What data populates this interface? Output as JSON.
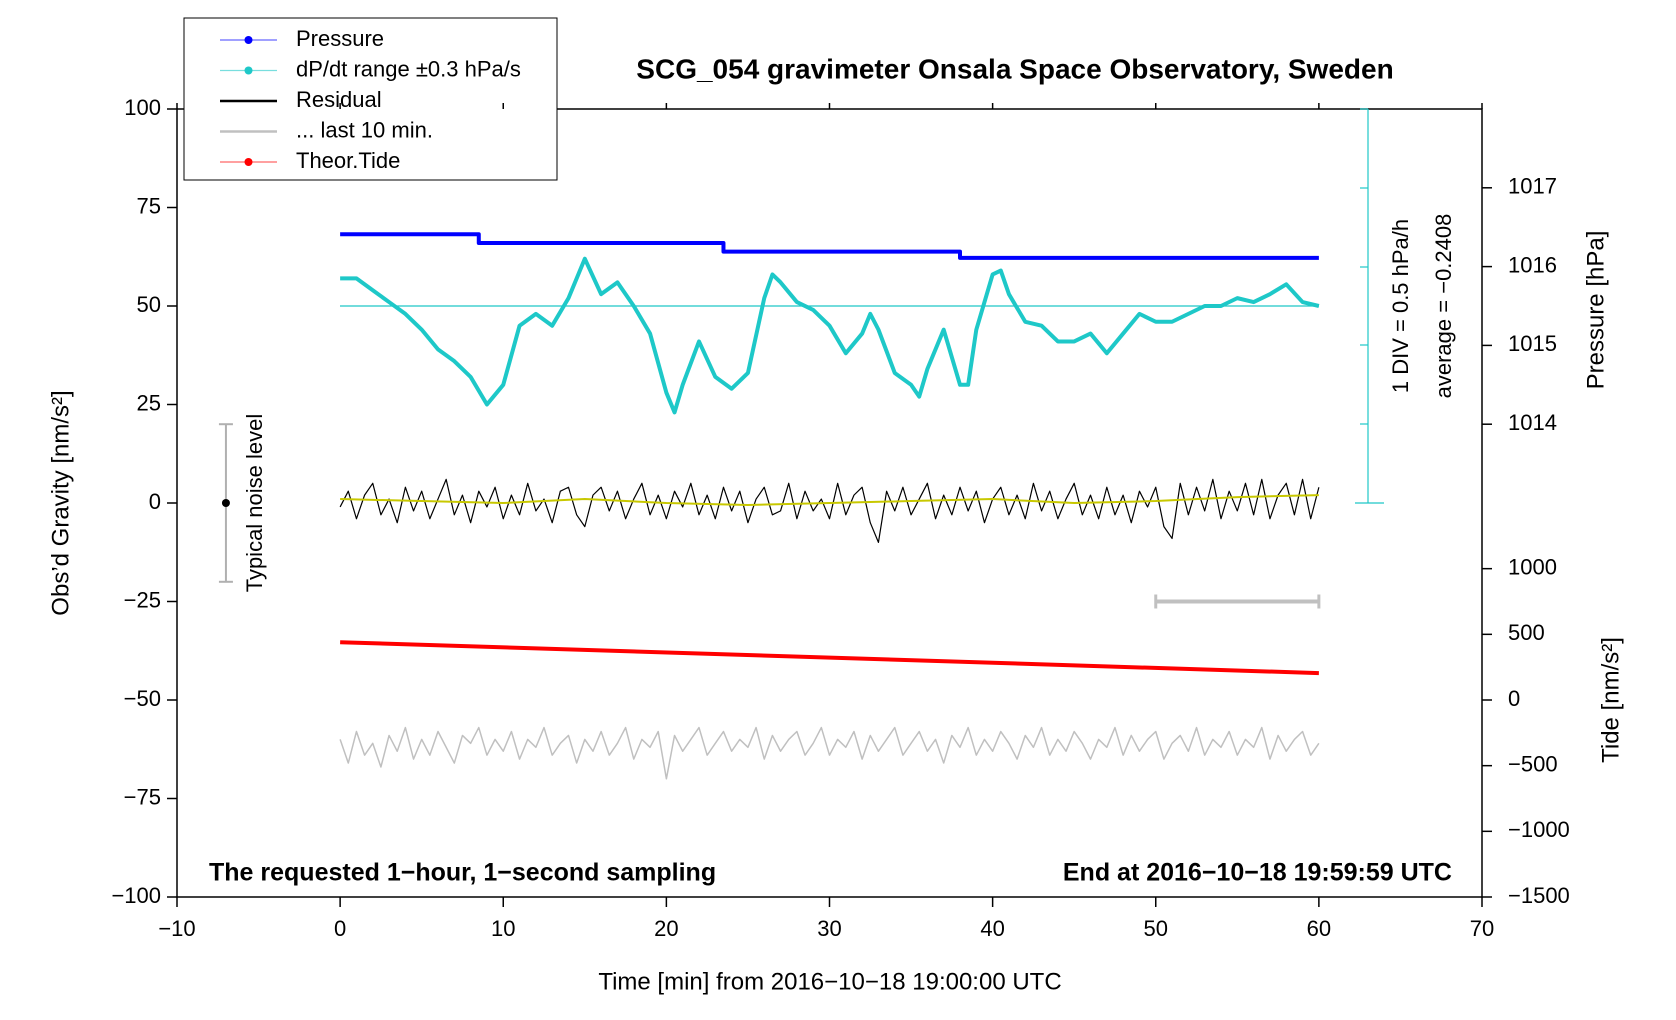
{
  "chart_data": {
    "type": "line",
    "title": "SCG_054 gravimeter Onsala Space Observatory, Sweden",
    "xlabel": "Time [min] from 2016−10−18 19:00:00 UTC",
    "ylabel": "Obs’d Gravity [nm/s²]",
    "y2label": "Pressure [hPa]",
    "y3label": "Tide [nm/s²]",
    "xlim": [
      -10,
      70
    ],
    "xticks": [
      {
        "value": -10,
        "label": "−10"
      },
      0,
      10,
      20,
      30,
      40,
      50,
      60,
      70
    ],
    "ylim": [
      -100,
      100
    ],
    "yticks": [
      100,
      75,
      50,
      25,
      0,
      {
        "value": -25,
        "label": "−25"
      },
      {
        "value": -50,
        "label": "−50"
      },
      {
        "value": -75,
        "label": "−75"
      },
      {
        "value": -100,
        "label": "−100"
      }
    ],
    "y2lim": [
      1008,
      1018
    ],
    "y2ticks": [
      1014,
      1015,
      1016,
      1017
    ],
    "y3lim": [
      -1500,
      4500
    ],
    "y3ticks": [
      1000,
      500,
      0,
      {
        "value": -500,
        "label": "−500"
      },
      {
        "value": -1000,
        "label": "−1000"
      },
      {
        "value": -1500,
        "label": "−1500"
      }
    ],
    "annotations": [
      "The requested 1−hour, 1−second sampling",
      "End at 2016−10−18 19:59:59 UTC",
      "1 DIV = 0.5 hPa/h",
      "average = −0.2408"
    ],
    "noise_level": {
      "x": -7,
      "y": 0,
      "error": 20,
      "label": "Typical noise level"
    },
    "x": [
      0,
      0.5,
      1,
      1.5,
      2,
      2.5,
      3,
      3.5,
      4,
      4.5,
      5,
      5.5,
      6,
      6.5,
      7,
      7.5,
      8,
      8.5,
      9,
      9.5,
      10,
      10.5,
      11,
      11.5,
      12,
      12.5,
      13,
      13.5,
      14,
      14.5,
      15,
      15.5,
      16,
      16.5,
      17,
      17.5,
      18,
      18.5,
      19,
      19.5,
      20,
      20.5,
      21,
      21.5,
      22,
      22.5,
      23,
      23.5,
      24,
      24.5,
      25,
      25.5,
      26,
      26.5,
      27,
      27.5,
      28,
      28.5,
      29,
      29.5,
      30,
      30.5,
      31,
      31.5,
      32,
      32.5,
      33,
      33.5,
      34,
      34.5,
      35,
      35.5,
      36,
      36.5,
      37,
      37.5,
      38,
      38.5,
      39,
      39.5,
      40,
      40.5,
      41,
      41.5,
      42,
      42.5,
      43,
      43.5,
      44,
      44.5,
      45,
      45.5,
      46,
      46.5,
      47,
      47.5,
      48,
      48.5,
      49,
      49.5,
      50,
      50.5,
      51,
      51.5,
      52,
      52.5,
      53,
      53.5,
      54,
      54.5,
      55,
      55.5,
      56,
      56.5,
      57,
      57.5,
      58,
      58.5,
      59,
      59.5,
      60
    ],
    "series": [
      {
        "name": "Pressure",
        "color": "#0000ff",
        "axis": "y2",
        "marker": true,
        "width": 4,
        "x": [
          0,
          8.5,
          8.5,
          23.5,
          23.5,
          38,
          38,
          60
        ],
        "values": [
          1016.41,
          1016.41,
          1016.3,
          1016.3,
          1016.19,
          1016.19,
          1016.11,
          1016.11
        ]
      },
      {
        "name": "dP/dt range ±0.3 hPa/s",
        "color": "#1ec8c8",
        "axis": "y",
        "marker": true,
        "width": 4,
        "x": [
          0,
          1,
          2,
          3,
          4,
          5,
          6,
          7,
          8,
          9,
          10,
          11,
          12,
          13,
          14,
          15,
          16,
          17,
          18,
          19,
          20,
          20.5,
          21,
          22,
          23,
          24,
          25,
          26,
          26.5,
          27,
          28,
          29,
          30,
          31,
          32,
          32.5,
          33,
          34,
          35,
          35.5,
          36,
          37,
          38,
          38.5,
          39,
          40,
          40.5,
          41,
          42,
          43,
          44,
          45,
          46,
          47,
          48,
          49,
          50,
          51,
          52,
          53,
          54,
          55,
          56,
          57,
          58,
          59,
          60
        ],
        "values": [
          57,
          57,
          54,
          51,
          48,
          44,
          39,
          36,
          32,
          25,
          30,
          45,
          48,
          45,
          52,
          62,
          53,
          56,
          50,
          43,
          28,
          23,
          30,
          41,
          32,
          29,
          33,
          52,
          58,
          56,
          51,
          49,
          45,
          38,
          43,
          48,
          44,
          33,
          30,
          27,
          34,
          44,
          30,
          30,
          44,
          58,
          59,
          53,
          46,
          45,
          41,
          41,
          43,
          38,
          43,
          48,
          46,
          46,
          48,
          50,
          50,
          52,
          51,
          53,
          55.5,
          51,
          50
        ]
      },
      {
        "name": "Residual",
        "color": "#000000",
        "axis": "y",
        "width": 1.2,
        "values": [
          -1,
          3,
          -4,
          2,
          5,
          -3,
          1,
          -5,
          4,
          -2,
          3,
          -4,
          1,
          6,
          -3,
          2,
          -5,
          3,
          -1,
          4,
          -4,
          2,
          -3,
          5,
          -2,
          1,
          -5,
          3,
          4,
          -3,
          -6,
          2,
          4,
          -2,
          3,
          -4,
          1,
          5,
          -3,
          2,
          -4,
          3,
          -1,
          5,
          -3,
          2,
          -4,
          4,
          -2,
          3,
          -5,
          1,
          4,
          -3,
          -2,
          5,
          -4,
          3,
          -2,
          1,
          -4,
          5,
          -3,
          2,
          4,
          -5,
          -10,
          3,
          -2,
          4,
          -3,
          1,
          5,
          -4,
          2,
          -3,
          4,
          -2,
          3,
          -5,
          1,
          4,
          -3,
          2,
          -4,
          5,
          -2,
          3,
          -4,
          1,
          5,
          -3,
          2,
          -4,
          4,
          -3,
          2,
          -5,
          3,
          -1,
          4,
          -6,
          -9,
          5,
          -3,
          4,
          -2,
          6,
          -4,
          3,
          -2,
          5,
          -3,
          6,
          -4,
          2,
          5,
          -3,
          6,
          -4,
          4
        ]
      },
      {
        "color": "#c8c800",
        "axis": "y",
        "width": 2,
        "x": [
          0,
          5,
          10,
          15,
          20,
          25,
          30,
          35,
          40,
          45,
          50,
          55,
          60
        ],
        "values": [
          1,
          0.5,
          0,
          1,
          0,
          -0.5,
          0,
          0.5,
          1,
          0,
          0.5,
          1.5,
          2
        ]
      },
      {
        "name": "... last 10 min.",
        "color": "#c0c0c0",
        "axis": "y",
        "width": 4,
        "caps": true,
        "x": [
          50,
          60
        ],
        "values": [
          -25,
          -25
        ]
      },
      {
        "name": "Theor.Tide",
        "color": "#ff0000",
        "axis": "y3",
        "marker": true,
        "width": 4,
        "x": [
          0,
          60
        ],
        "values": [
          440,
          205
        ]
      },
      {
        "color": "#c0c0c0",
        "axis": "y",
        "width": 1.5,
        "values": [
          -60,
          -66,
          -58,
          -64,
          -61,
          -67,
          -59,
          -63,
          -57,
          -65,
          -60,
          -64,
          -58,
          -62,
          -66,
          -59,
          -61,
          -57,
          -64,
          -60,
          -63,
          -58,
          -65,
          -60,
          -62,
          -57,
          -64,
          -61,
          -59,
          -66,
          -60,
          -63,
          -58,
          -64,
          -61,
          -57,
          -65,
          -60,
          -62,
          -58,
          -70,
          -59,
          -63,
          -60,
          -57,
          -64,
          -61,
          -58,
          -63,
          -60,
          -62,
          -57,
          -65,
          -59,
          -63,
          -60,
          -58,
          -64,
          -61,
          -57,
          -64,
          -60,
          -62,
          -58,
          -65,
          -59,
          -63,
          -60,
          -57,
          -64,
          -61,
          -58,
          -63,
          -60,
          -66,
          -59,
          -62,
          -57,
          -64,
          -60,
          -63,
          -58,
          -61,
          -65,
          -59,
          -62,
          -57,
          -64,
          -60,
          -63,
          -58,
          -61,
          -65,
          -60,
          -62,
          -57,
          -64,
          -59,
          -63,
          -60,
          -58,
          -65,
          -61,
          -59,
          -63,
          -57,
          -64,
          -60,
          -62,
          -58,
          -64,
          -60,
          -62,
          -57,
          -65,
          -59,
          -63,
          -60,
          -58,
          -64,
          -61
        ]
      }
    ]
  }
}
